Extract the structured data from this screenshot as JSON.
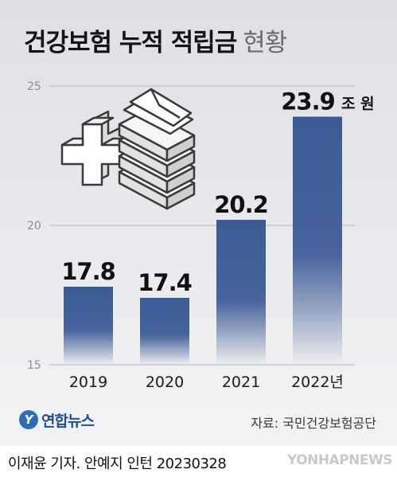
{
  "title": {
    "main": "건강보험 누적 적립금",
    "sub": "현황"
  },
  "chart_data": {
    "type": "bar",
    "title": "건강보험 누적 적립금 현황",
    "categories": [
      "2019",
      "2020",
      "2021",
      "2022년"
    ],
    "values": [
      17.8,
      17.4,
      20.2,
      23.9
    ],
    "value_labels": [
      "17.8",
      "17.4",
      "20.2",
      "23.9"
    ],
    "unit": "조 원",
    "ylim": [
      15,
      25
    ],
    "yticks": [
      15,
      20,
      25
    ],
    "ytick_labels": [
      "15",
      "20",
      "25"
    ],
    "grid": true,
    "bar_color": "#3c5a93"
  },
  "branding": {
    "logo_mark": "Y",
    "logo_text": "연합뉴스",
    "source": "자료: 국민건강보험공단",
    "credit": "이재윤 기자. 안예지 인턴  20230328",
    "agency": "YONHAPNEWS"
  },
  "illustration": {
    "name": "medical-cross-and-money-stack-icon"
  },
  "colors": {
    "bar": "#3c5a93",
    "logo": "#2f6db5"
  }
}
